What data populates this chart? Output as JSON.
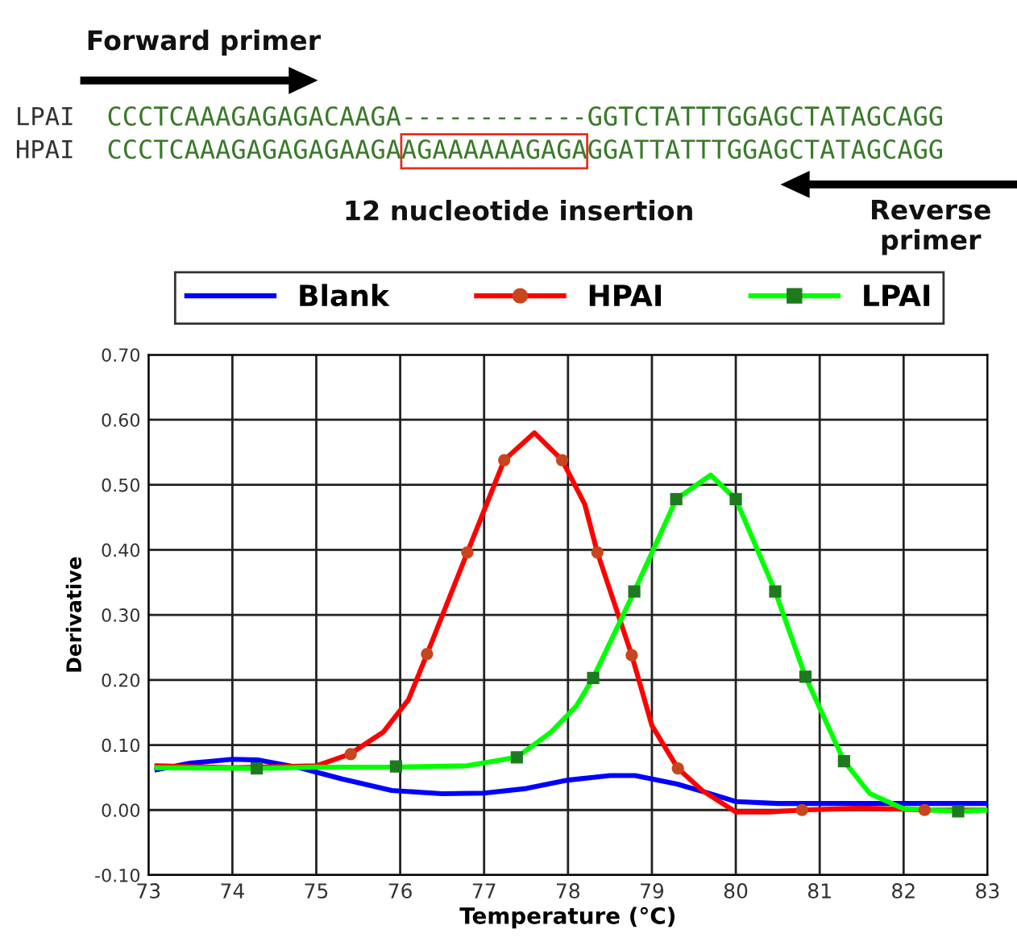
{
  "chart_data": {
    "type": "line",
    "xlabel": "Temperature (°C)",
    "ylabel": "Derivative",
    "xlim": [
      73,
      83
    ],
    "xticks": [
      73,
      74,
      75,
      76,
      77,
      78,
      79,
      80,
      81,
      82,
      83
    ],
    "ylim": [
      -0.1,
      0.7
    ],
    "yticks": [
      {
        "value": -0.1,
        "label": "-0.10"
      },
      {
        "value": 0,
        "label": "0.00"
      },
      {
        "value": 0.1,
        "label": "0.10"
      },
      {
        "value": 0.2,
        "label": "0.20"
      },
      {
        "value": 0.3,
        "label": "0.30"
      },
      {
        "value": 0.4,
        "label": "0.40"
      },
      {
        "value": 0.5,
        "label": "0.50"
      },
      {
        "value": 0.6,
        "label": "0.60"
      },
      {
        "value": 0.7,
        "label": "0.70"
      }
    ],
    "grid": true,
    "legend": "top",
    "line_style": "solid",
    "series": [
      {
        "name": "Blank",
        "color": "#0000ff",
        "marker": "none",
        "x": [
          73.1,
          73.5,
          74,
          74.3,
          74.8,
          75.3,
          75.9,
          76.5,
          77,
          77.5,
          78,
          78.5,
          78.8,
          79.3,
          79.7,
          80.0,
          80.5,
          81.5,
          82.5,
          83
        ],
        "values": [
          0.062,
          0.072,
          0.078,
          0.077,
          0.065,
          0.048,
          0.03,
          0.025,
          0.026,
          0.033,
          0.046,
          0.053,
          0.053,
          0.04,
          0.025,
          0.013,
          0.01,
          0.01,
          0.01,
          0.01
        ]
      },
      {
        "name": "HPAI",
        "color": "#ff0000",
        "marker": "none",
        "x": [
          73.1,
          74,
          75,
          75.4,
          75.8,
          76.1,
          76.32,
          76.8,
          77.24,
          77.6,
          77.93,
          78.2,
          78.35,
          78.76,
          79.0,
          79.31,
          79.6,
          80.0,
          80.4,
          80.8,
          81.5,
          82.25,
          83
        ],
        "values": [
          0.068,
          0.065,
          0.068,
          0.086,
          0.12,
          0.17,
          0.24,
          0.396,
          0.538,
          0.58,
          0.538,
          0.47,
          0.396,
          0.238,
          0.13,
          0.064,
          0.03,
          -0.003,
          -0.003,
          0.0,
          0.003,
          0.0,
          0.0
        ]
      },
      {
        "type": "scatter",
        "color": "#c8461e",
        "marker": "circle",
        "x": [
          75.41,
          76.32,
          76.8,
          77.24,
          77.93,
          78.35,
          78.76,
          79.31,
          80.79,
          82.25
        ],
        "values": [
          0.086,
          0.24,
          0.396,
          0.538,
          0.538,
          0.396,
          0.238,
          0.064,
          0.0,
          0.0
        ]
      },
      {
        "name": "LPAI",
        "color": "#00ff00",
        "marker": "none",
        "x": [
          73.1,
          74.29,
          75,
          75.95,
          76.8,
          77.39,
          77.8,
          78.1,
          78.3,
          78.79,
          79.29,
          79.7,
          80.0,
          80.47,
          80.83,
          81.29,
          81.6,
          82.0,
          82.65,
          83
        ],
        "values": [
          0.065,
          0.064,
          0.066,
          0.066,
          0.068,
          0.081,
          0.12,
          0.16,
          0.203,
          0.336,
          0.478,
          0.515,
          0.478,
          0.336,
          0.205,
          0.075,
          0.025,
          0.002,
          -0.002,
          0.0
        ]
      },
      {
        "type": "scatter",
        "color": "#1e7a1e",
        "marker": "square",
        "x": [
          74.29,
          75.95,
          77.39,
          78.3,
          78.79,
          79.29,
          80.0,
          80.47,
          80.83,
          81.29,
          82.65
        ],
        "values": [
          0.064,
          0.067,
          0.081,
          0.203,
          0.336,
          0.478,
          0.478,
          0.336,
          0.205,
          0.075,
          -0.002
        ]
      }
    ],
    "annotations": [
      "Forward primer",
      "LPAI",
      "HPAI",
      "CCCTCAAAGAGAGACAAGA------------GGTCTATTTGGAGCTATAGCAGG",
      "CCCTCAAAGAGAGAGAAGAAGAAAAAAGAGAGGATTATTTGGAGCTATAGCAGG",
      "12 nucleotide insertion",
      "Reverse primer"
    ]
  }
}
